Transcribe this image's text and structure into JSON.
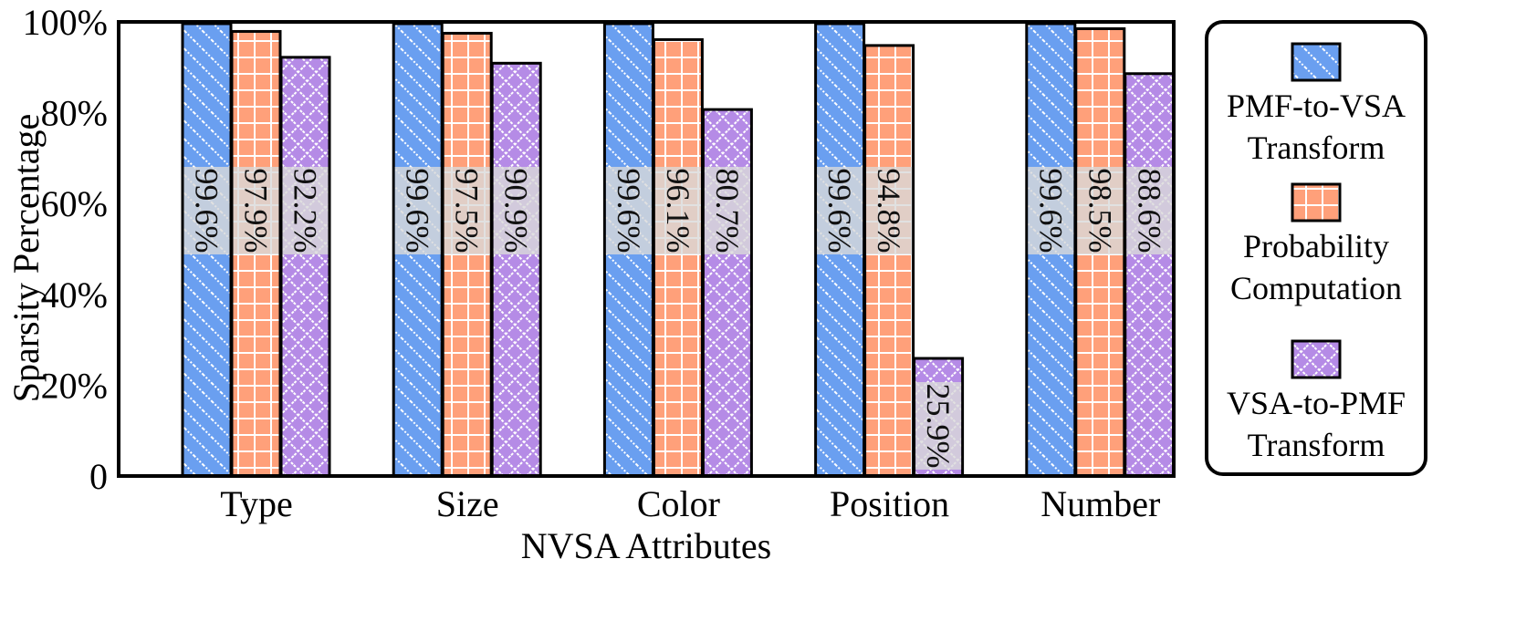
{
  "chart_data": {
    "type": "bar",
    "xlabel": "NVSA Attributes",
    "ylabel": "Sparsity Percentage",
    "categories": [
      "Type",
      "Size",
      "Color",
      "Position",
      "Number"
    ],
    "ylim": [
      0,
      100
    ],
    "yticks": [
      {
        "value": 0,
        "label": "0"
      },
      {
        "value": 20,
        "label": "20%"
      },
      {
        "value": 40,
        "label": "40%"
      },
      {
        "value": 60,
        "label": "60%"
      },
      {
        "value": 80,
        "label": "80%"
      },
      {
        "value": 100,
        "label": "100%"
      }
    ],
    "series": [
      {
        "name": "PMF-to-VSA Transform",
        "legend_lines": [
          "PMF-to-VSA",
          "Transform"
        ],
        "color": "#6a9ff0",
        "pattern": "diagonal-hatch",
        "values": [
          99.6,
          99.6,
          99.6,
          99.6,
          99.6
        ],
        "labels": [
          "99.6%",
          "99.6%",
          "99.6%",
          "99.6%",
          "99.6%"
        ]
      },
      {
        "name": "Probability Computation",
        "legend_lines": [
          "Probability",
          "Computation"
        ],
        "color": "#ffa07a",
        "pattern": "grid",
        "values": [
          97.9,
          97.5,
          96.1,
          94.8,
          98.5
        ],
        "labels": [
          "97.9%",
          "97.5%",
          "96.1%",
          "94.8%",
          "98.5%"
        ]
      },
      {
        "name": "VSA-to-PMF Transform",
        "legend_lines": [
          "VSA-to-PMF",
          "Transform"
        ],
        "color": "#b58be6",
        "pattern": "crosshatch",
        "values": [
          92.2,
          90.9,
          80.7,
          25.9,
          88.6
        ],
        "labels": [
          "92.2%",
          "90.9%",
          "80.7%",
          "25.9%",
          "88.6%"
        ]
      }
    ],
    "legend_position": "right",
    "grid": false
  }
}
